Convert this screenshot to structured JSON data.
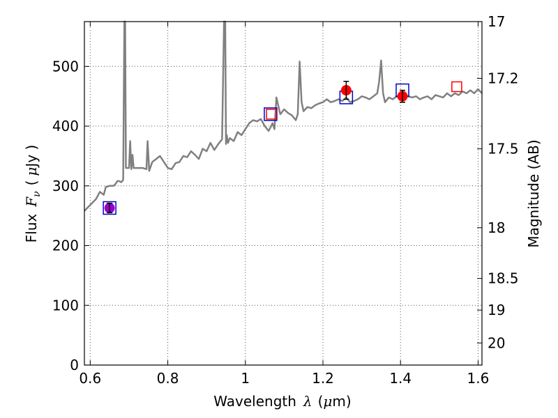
{
  "chart_data": {
    "type": "line",
    "xlabel": "Wavelength",
    "xlabel_symbol": "λ",
    "xlabel_unit_open": "(",
    "xlabel_unit_mu": "μ",
    "xlabel_unit_rest": "m)",
    "ylabel": "Flux",
    "ylabel_symbol_F": "F",
    "ylabel_symbol_sub": "ν",
    "ylabel_unit_open": "(",
    "ylabel_unit_mu": "μ",
    "ylabel_unit_rest": "Jy )",
    "y2label": "Magnitude (AB)",
    "xlim": [
      0.585,
      1.61
    ],
    "ylim": [
      0,
      575
    ],
    "grid": true,
    "x_ticks": [
      0.6,
      0.8,
      1.0,
      1.2,
      1.4,
      1.6
    ],
    "x_tick_labels": [
      "0.6",
      "0.8",
      "1",
      "1.2",
      "1.4",
      "1.6"
    ],
    "y_ticks": [
      0,
      100,
      200,
      300,
      400,
      500
    ],
    "y_tick_labels": [
      "0",
      "100",
      "200",
      "300",
      "400",
      "500"
    ],
    "y2_ticks": [
      {
        "flux": 575,
        "label": "17"
      },
      {
        "flux": 480,
        "label": "17.2"
      },
      {
        "flux": 362,
        "label": "17.5"
      },
      {
        "flux": 230,
        "label": "18"
      },
      {
        "flux": 145,
        "label": "18.5"
      },
      {
        "flux": 92,
        "label": "19"
      },
      {
        "flux": 37,
        "label": "20"
      }
    ],
    "colors": {
      "spectrum": "#808080",
      "model_square": "#0000cc",
      "observed_point": "#ff0000",
      "open_square": "#ff0000",
      "violet_point": "#9900cc",
      "grid": "#555555"
    },
    "series": [
      {
        "type": "line",
        "x": [
          0.585,
          0.6,
          0.615,
          0.625,
          0.635,
          0.64,
          0.65,
          0.66,
          0.665,
          0.67,
          0.675,
          0.68,
          0.685,
          0.688,
          0.69,
          0.692,
          0.695,
          0.7,
          0.703,
          0.706,
          0.709,
          0.712,
          0.72,
          0.735,
          0.745,
          0.748,
          0.752,
          0.76,
          0.77,
          0.78,
          0.79,
          0.8,
          0.81,
          0.82,
          0.83,
          0.84,
          0.85,
          0.86,
          0.87,
          0.88,
          0.89,
          0.9,
          0.91,
          0.92,
          0.93,
          0.94,
          0.945,
          0.948,
          0.95,
          0.952,
          0.955,
          0.96,
          0.97,
          0.98,
          0.99,
          1.0,
          1.01,
          1.02,
          1.03,
          1.04,
          1.05,
          1.06,
          1.065,
          1.07,
          1.075,
          1.08,
          1.09,
          1.1,
          1.11,
          1.12,
          1.13,
          1.135,
          1.14,
          1.145,
          1.15,
          1.16,
          1.17,
          1.18,
          1.19,
          1.2,
          1.21,
          1.22,
          1.23,
          1.24,
          1.25,
          1.26,
          1.27,
          1.28,
          1.29,
          1.3,
          1.31,
          1.32,
          1.33,
          1.34,
          1.345,
          1.35,
          1.355,
          1.36,
          1.37,
          1.38,
          1.39,
          1.4,
          1.41,
          1.42,
          1.43,
          1.44,
          1.45,
          1.46,
          1.47,
          1.48,
          1.49,
          1.5,
          1.51,
          1.52,
          1.53,
          1.54,
          1.55,
          1.56,
          1.57,
          1.58,
          1.59,
          1.6,
          1.61
        ],
        "y": [
          258,
          268,
          278,
          290,
          285,
          298,
          300,
          300,
          303,
          308,
          308,
          306,
          310,
          575,
          575,
          330,
          330,
          330,
          375,
          328,
          352,
          330,
          330,
          330,
          328,
          375,
          325,
          340,
          345,
          350,
          340,
          330,
          328,
          338,
          340,
          350,
          348,
          358,
          352,
          345,
          362,
          358,
          372,
          360,
          370,
          378,
          575,
          575,
          370,
          385,
          372,
          380,
          375,
          390,
          385,
          395,
          405,
          410,
          408,
          412,
          400,
          392,
          398,
          405,
          395,
          448,
          420,
          428,
          422,
          418,
          410,
          420,
          508,
          440,
          425,
          432,
          430,
          435,
          438,
          440,
          445,
          440,
          442,
          445,
          442,
          448,
          440,
          442,
          445,
          450,
          448,
          445,
          450,
          455,
          475,
          510,
          455,
          440,
          448,
          445,
          450,
          448,
          452,
          450,
          448,
          450,
          445,
          448,
          450,
          445,
          452,
          450,
          448,
          455,
          450,
          455,
          452,
          458,
          455,
          460,
          455,
          462,
          455
        ]
      },
      {
        "type": "open_square",
        "color": "#0000cc",
        "x": [
          0.65,
          1.065,
          1.26,
          1.405
        ],
        "y": [
          263,
          420,
          448,
          460
        ]
      },
      {
        "type": "open_square",
        "color": "#ff0000",
        "x": [
          1.067,
          1.545
        ],
        "y": [
          420,
          466
        ]
      },
      {
        "type": "point_errorbar",
        "color": "#ff0000",
        "x": [
          1.26,
          1.405
        ],
        "y": [
          460,
          450
        ],
        "err": [
          15,
          10
        ]
      },
      {
        "type": "point_errorbar",
        "color": "#9900cc",
        "x": [
          0.65
        ],
        "y": [
          263
        ],
        "err": [
          8
        ]
      }
    ]
  }
}
